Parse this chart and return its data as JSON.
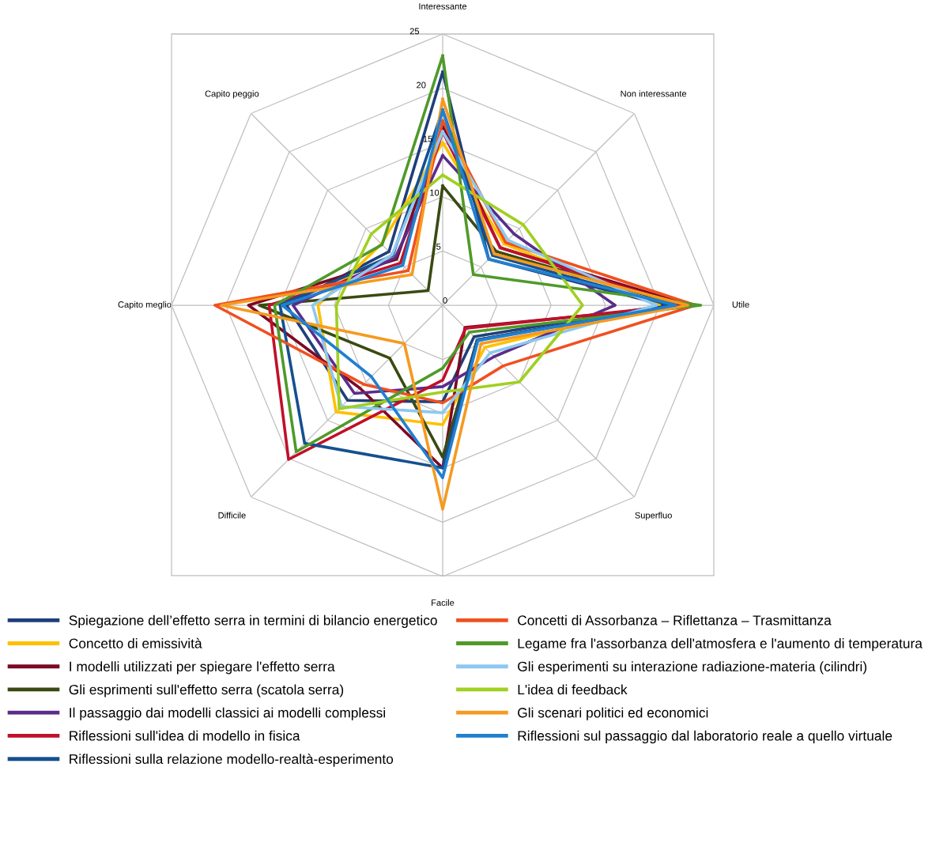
{
  "chart_data": {
    "type": "radar",
    "categories": [
      "Interessante",
      "Non interessante",
      "Utile",
      "Superfluo",
      "Facile",
      "Difficile",
      "Capito meglio",
      "Capito peggio"
    ],
    "ylim": [
      0,
      25
    ],
    "yticks": [
      0,
      5,
      10,
      15,
      20,
      25
    ],
    "grid": true,
    "legend": "bottom",
    "line_style": "solid",
    "marker": "none",
    "series": [
      {
        "name": "Spiegazione dell’effetto serra in termini di bilancio energetico",
        "color": "#1f3f7a",
        "values": [
          21.5,
          6.0,
          20.5,
          4.1,
          8.9,
          12.4,
          14.4,
          7.0
        ]
      },
      {
        "name": "Concetto di emissività",
        "color": "#ffc000",
        "values": [
          15,
          8,
          20,
          5.5,
          11,
          13.9,
          11.5,
          8
        ]
      },
      {
        "name": "I modelli utilizzati per spiegare l'effetto serra",
        "color": "#7b0a24",
        "values": [
          16.5,
          7.5,
          22.8,
          2.9,
          15,
          10.8,
          17.9,
          6
        ]
      },
      {
        "name": "Gli esprimenti sull'effetto serra (scatola serra)",
        "color": "#3a4a12",
        "values": [
          11,
          7,
          22,
          4.5,
          14,
          6.9,
          16.9,
          1.9
        ]
      },
      {
        "name": "Il passaggio dai modelli classici ai modelli complessi",
        "color": "#5b2c8a",
        "values": [
          13.8,
          9.3,
          15.9,
          6.7,
          7.5,
          11.5,
          13.8,
          6.2
        ]
      },
      {
        "name": "Riflessioni sull'idea di modello in fisica",
        "color": "#c0102a",
        "values": [
          16,
          7.5,
          22,
          3,
          6.9,
          20.1,
          16,
          5.5
        ]
      },
      {
        "name": "Riflessioni sulla relazione modello-realtà-esperimento",
        "color": "#15508f",
        "values": [
          18,
          6.5,
          21,
          4.5,
          15,
          18,
          15,
          6.5
        ]
      },
      {
        "name": "Concetti di Assorbanza – Riflettanza – Trasmittanza",
        "color": "#f05020",
        "values": [
          17,
          8.2,
          23.3,
          7.9,
          9,
          10.3,
          21,
          4.5
        ]
      },
      {
        "name": "Legame fra l'assorbanza dell'atmosfera e l'aumento di temperatura",
        "color": "#4f9a2a",
        "values": [
          23,
          4.0,
          23.8,
          3.5,
          5.8,
          19.1,
          15.5,
          7.9
        ]
      },
      {
        "name": "Gli esperimenti su interazione radiazione-materia (cilindri)",
        "color": "#8ec8f0",
        "values": [
          16,
          8.5,
          19.7,
          6.2,
          9.9,
          13.2,
          12,
          6.6
        ]
      },
      {
        "name": "L'idea di feedback",
        "color": "#a0d020",
        "values": [
          12,
          10.5,
          12.9,
          10,
          8,
          13.5,
          9.8,
          9.3
        ]
      },
      {
        "name": "Gli scenari politici ed economici",
        "color": "#f59a20",
        "values": [
          19,
          6.7,
          22.6,
          5,
          18.8,
          5.0,
          20.4,
          4.0
        ]
      },
      {
        "name": "Riflessioni sul passaggio dal laboratorio reale a quello virtuale",
        "color": "#2080d0",
        "values": [
          18,
          6,
          21.5,
          4.6,
          15.9,
          9.3,
          14.8,
          5.2
        ]
      }
    ]
  }
}
